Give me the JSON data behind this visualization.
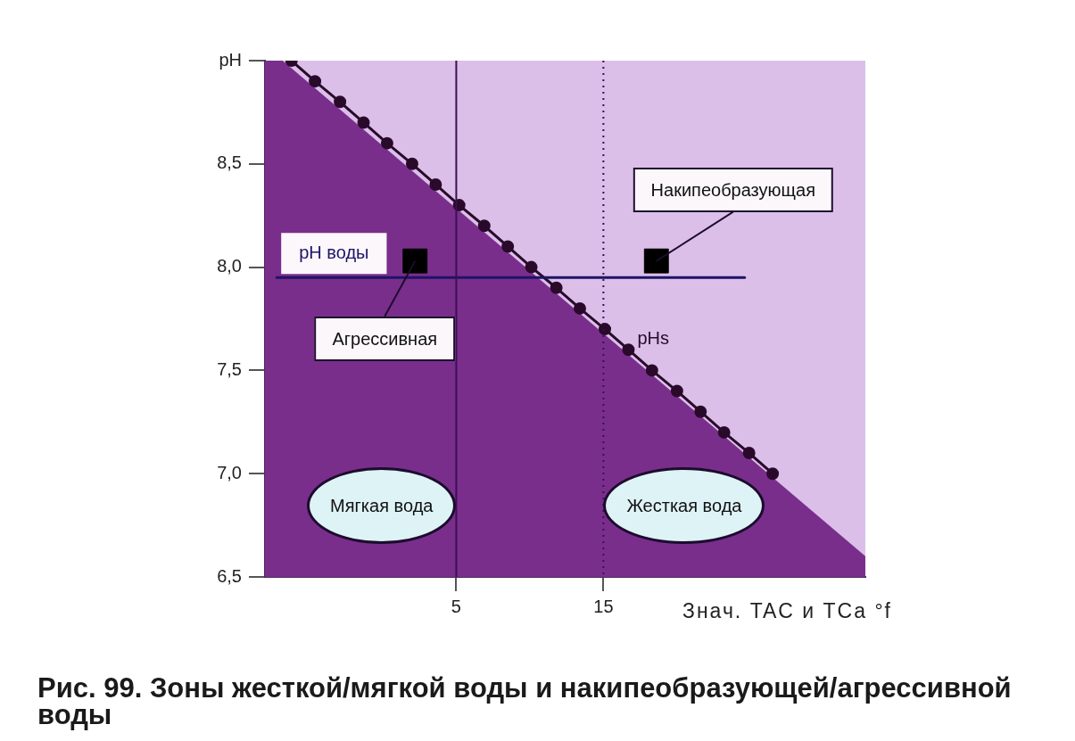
{
  "chart_data": {
    "type": "line",
    "ylabel": "pH",
    "xlabel": "Знач. TAC и TCa °f",
    "xlim": [
      -8,
      32.8
    ],
    "xticks": [
      5,
      15
    ],
    "ylim": [
      6.5,
      9.0
    ],
    "yticks": [
      {
        "value": 6.5,
        "label": "6,5"
      },
      {
        "value": 7,
        "label": "7,0"
      },
      {
        "value": 7.5,
        "label": "7,5"
      },
      {
        "value": 8,
        "label": "8,0"
      },
      {
        "value": 8.5,
        "label": "8,5"
      },
      {
        "value": 9,
        "label": null
      }
    ],
    "grid": false,
    "legend": false,
    "series": [
      {
        "type": "area",
        "color": "#7a2e8c",
        "x": [
          -8,
          -6.8,
          32.8
        ],
        "values": [
          9.0,
          9.0,
          6.6
        ]
      },
      {
        "type": "line",
        "name": "pHs",
        "color": "#2a0a2a",
        "marker": "circle",
        "line_style": "solid",
        "x": [
          -6.2,
          -4.6,
          -2.9,
          -1.3,
          0.3,
          2.0,
          3.6,
          5.2,
          6.9,
          8.5,
          10.1,
          11.8,
          13.4,
          15.1,
          16.7,
          18.3,
          20.0,
          21.6,
          23.2,
          24.9,
          26.5
        ],
        "values": [
          9.0,
          8.9,
          8.8,
          8.7,
          8.6,
          8.5,
          8.4,
          8.3,
          8.2,
          8.1,
          8.0,
          7.9,
          7.8,
          7.7,
          7.6,
          7.5,
          7.4,
          7.3,
          7.2,
          7.1,
          7.0
        ]
      },
      {
        "name": "pH воды",
        "color": "#1e1466",
        "marker": "none",
        "line_style": "solid",
        "x": [
          -7.2,
          24.6
        ],
        "values": [
          7.95,
          7.95
        ]
      },
      {
        "type": "scatter",
        "color": "#000000",
        "marker": "square",
        "x": [
          2.2,
          18.6
        ],
        "values": [
          8.03,
          8.03
        ]
      }
    ],
    "ref_lines": [
      {
        "axis": "x",
        "value": 5,
        "color": "#3a1050",
        "line_style": "solid"
      },
      {
        "axis": "x",
        "value": 15,
        "color": "#3a1050",
        "line_style": "dotted"
      }
    ],
    "annotations": [
      {
        "text": "Агрессивная",
        "x": 2.2,
        "y": 8.03
      },
      {
        "text": "Накипеобразующая",
        "x": 18.6,
        "y": 8.03
      },
      "Мягкая вода",
      "Жесткая вода",
      "Рис. 99. Зоны жесткой/мягкой воды и накипеобразующей/агрессивной воды"
    ]
  }
}
